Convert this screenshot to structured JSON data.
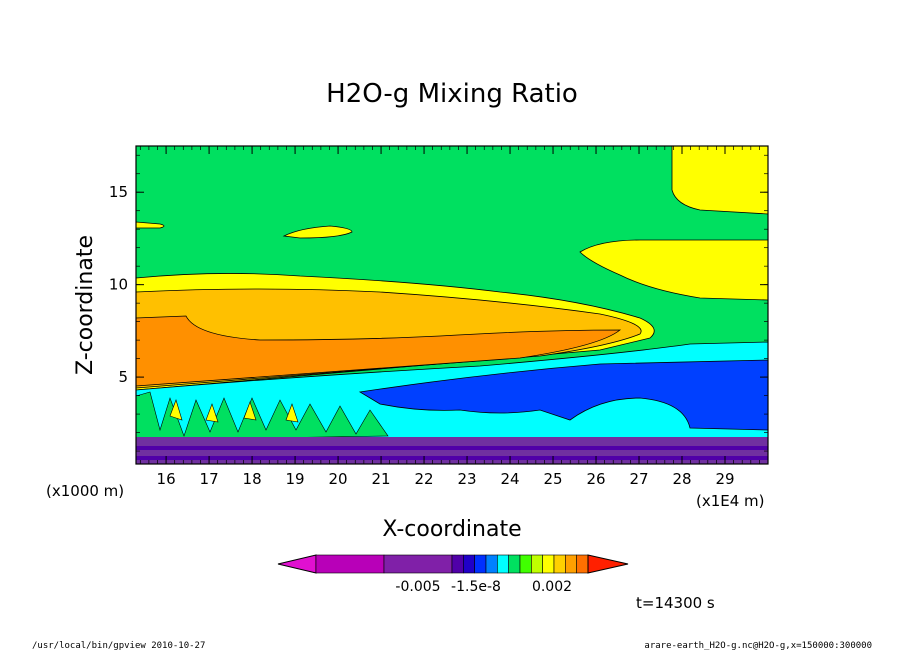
{
  "chart_data": {
    "type": "heatmap",
    "title": "H2O-g Mixing Ratio",
    "xlabel": "X-coordinate",
    "ylabel": "Z-coordinate",
    "x_unit_label": "(x1E4 m)",
    "y_unit_label": "(x1000 m)",
    "xlim": [
      15.3,
      30.0
    ],
    "ylim": [
      0.3,
      17.5
    ],
    "x_ticks": [
      "16",
      "17",
      "18",
      "19",
      "20",
      "21",
      "22",
      "23",
      "24",
      "25",
      "26",
      "27",
      "28",
      "29"
    ],
    "y_ticks": [
      "5",
      "10",
      "15"
    ],
    "colorbar": {
      "colors": [
        "#e010d0",
        "#b800b8",
        "#8020a8",
        "#5000a8",
        "#2000c8",
        "#0030ff",
        "#0080ff",
        "#00ffff",
        "#00e060",
        "#40ff00",
        "#c0ff00",
        "#ffff00",
        "#ffd000",
        "#ffa000",
        "#ff7000",
        "#ff2000"
      ],
      "tick_labels": [
        "-0.005",
        "-1.5e-8",
        "0.002"
      ]
    },
    "regions": [
      {
        "name": "upper-green",
        "color": "#00e060"
      },
      {
        "name": "yellow-band",
        "color": "#ffff00"
      },
      {
        "name": "gold-layer",
        "color": "#ffc000"
      },
      {
        "name": "orange-core",
        "color": "#ff9000"
      },
      {
        "name": "cyan-layer",
        "color": "#00ffff"
      },
      {
        "name": "blue-layer",
        "color": "#0040ff"
      },
      {
        "name": "purple-surface",
        "color": "#7030a0"
      }
    ]
  },
  "time_label": "t=14300 s",
  "footer": {
    "left": "/usr/local/bin/gpview  2010-10-27",
    "right": "arare-earth_H2O-g.nc@H2O-g,x=150000:300000"
  }
}
